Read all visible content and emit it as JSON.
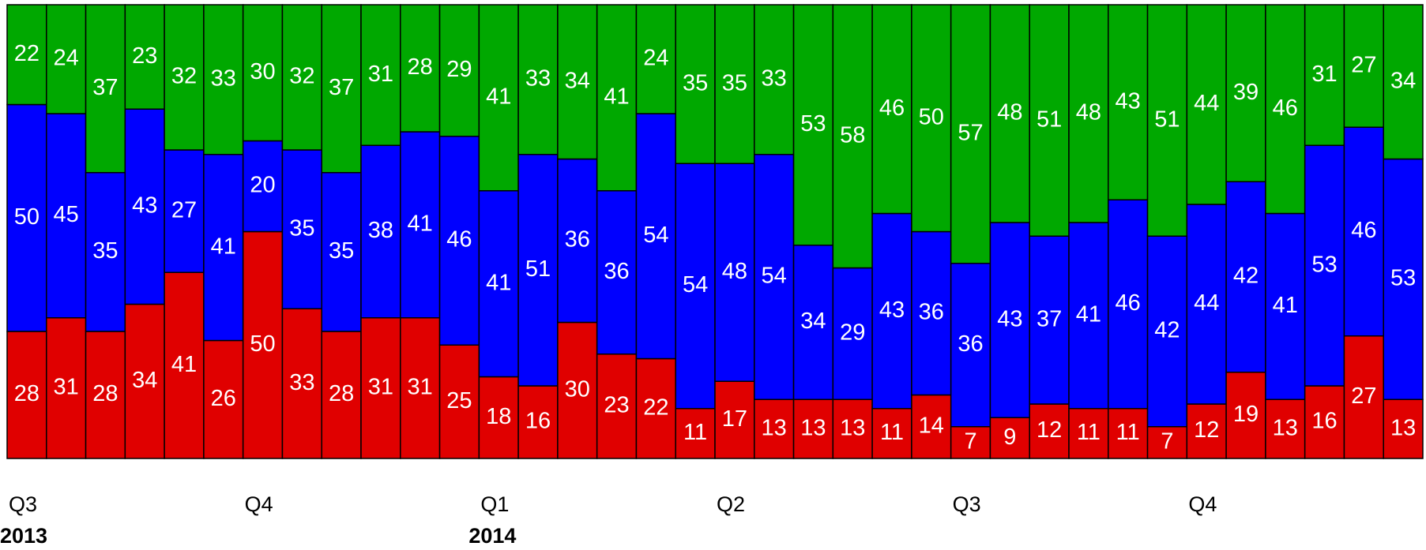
{
  "chart_data": {
    "type": "stacked_bar_100",
    "categories": [
      "Q3",
      null,
      null,
      null,
      null,
      null,
      "Q4",
      null,
      null,
      null,
      null,
      null,
      "Q1",
      null,
      null,
      null,
      null,
      null,
      "Q2",
      null,
      null,
      null,
      null,
      null,
      "Q3",
      null,
      null,
      null,
      null,
      null,
      "Q4",
      null,
      null,
      null,
      null,
      null
    ],
    "years": [
      "2013",
      null,
      null,
      null,
      null,
      null,
      null,
      null,
      null,
      null,
      null,
      null,
      "2014",
      null,
      null,
      null,
      null,
      null,
      null,
      null,
      null,
      null,
      null,
      null,
      null,
      null,
      null,
      null,
      null,
      null,
      null,
      null,
      null,
      null,
      null,
      null
    ],
    "ylim": [
      0,
      100
    ],
    "series": [
      {
        "color": "#e00000",
        "values": [
          28,
          31,
          28,
          34,
          41,
          26,
          50,
          33,
          28,
          31,
          31,
          25,
          18,
          16,
          30,
          23,
          22,
          11,
          17,
          13,
          13,
          13,
          11,
          14,
          7,
          9,
          12,
          11,
          11,
          7,
          12,
          19,
          13,
          16,
          27,
          13
        ]
      },
      {
        "color": "#0000ff",
        "values": [
          50,
          45,
          35,
          43,
          27,
          41,
          20,
          35,
          35,
          38,
          41,
          46,
          41,
          51,
          36,
          36,
          54,
          54,
          48,
          54,
          34,
          29,
          43,
          36,
          36,
          43,
          37,
          41,
          46,
          42,
          44,
          42,
          41,
          53,
          46,
          53
        ]
      },
      {
        "color": "#00a800",
        "values": [
          22,
          24,
          37,
          23,
          32,
          33,
          30,
          32,
          37,
          31,
          28,
          29,
          41,
          33,
          34,
          41,
          24,
          35,
          35,
          33,
          53,
          58,
          46,
          50,
          57,
          48,
          51,
          48,
          43,
          51,
          44,
          39,
          46,
          31,
          27,
          34
        ]
      }
    ]
  }
}
